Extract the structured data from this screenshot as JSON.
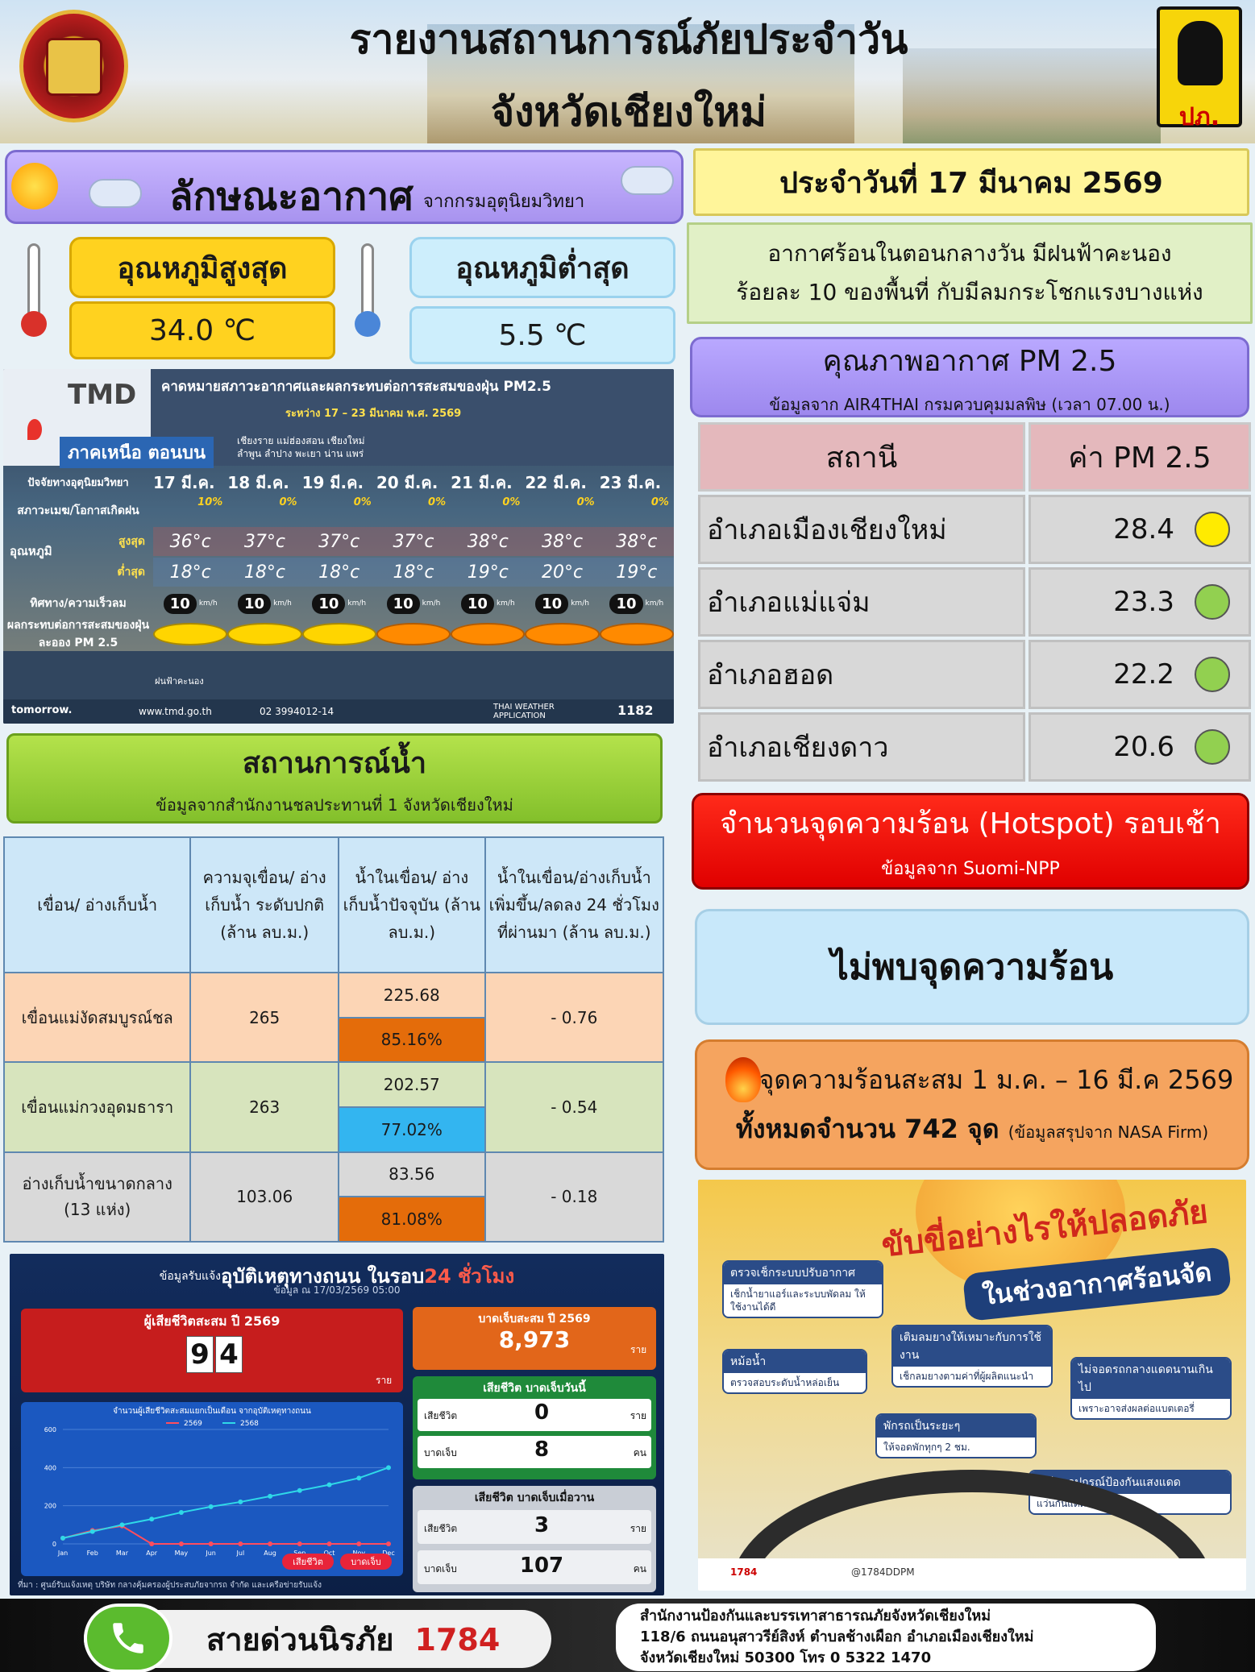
{
  "header": {
    "title_line1": "รายงานสถานการณ์ภัยประจำวัน",
    "title_line2": "จังหวัดเชียงใหม่",
    "logo_right_text": "ปภ."
  },
  "weather": {
    "title": "ลักษณะอากาศ",
    "source": "จากกรมอุตุนิยมวิทยา",
    "max_label": "อุณหภูมิสูงสุด",
    "max_value": "34.0 ℃",
    "min_label": "อุณหภูมิต่ำสุด",
    "min_value": "5.5 ℃"
  },
  "date": {
    "text": "ประจำวันที่ 17 มีนาคม 2569"
  },
  "forecast": {
    "line1": "อากาศร้อนในตอนกลางวัน  มีฝนฟ้าคะนอง",
    "line2": "ร้อยละ 10 ของพื้นที่ กับมีลมกระโชกแรงบางแห่ง"
  },
  "tmd": {
    "brand": "TMD",
    "heading": "คาดหมายสภาวะอากาศและผลกระทบต่อการสะสมของฝุ่น PM2.5",
    "period": "ระหว่าง 17 – 23 มีนาคม พ.ศ. 2569",
    "region": "ภาคเหนือ ตอนบน",
    "provinces_line1": "เชียงราย แม่ฮ่องสอน เชียงใหม่",
    "provinces_line2": "ลำพูน ลำปาง พะเยา น่าน แพร่",
    "factor_label": "ปัจจัยทางอุตุนิยมวิทยา",
    "days": [
      "17 มี.ค.",
      "18 มี.ค.",
      "19 มี.ค.",
      "20 มี.ค.",
      "21 มี.ค.",
      "22 มี.ค.",
      "23 มี.ค."
    ],
    "rain_label": "สภาวะเมฆ/โอกาสเกิดฝน",
    "rain_pct": [
      "10%",
      "0%",
      "0%",
      "0%",
      "0%",
      "0%",
      "0%"
    ],
    "temp_label": "อุณหภูมิ",
    "high_label": "สูงสุด",
    "low_label": "ต่ำสุด",
    "highs": [
      "36°c",
      "37°c",
      "37°c",
      "37°c",
      "38°c",
      "38°c",
      "38°c"
    ],
    "lows": [
      "18°c",
      "18°c",
      "18°c",
      "18°c",
      "19°c",
      "20°c",
      "19°c"
    ],
    "wind_label": "ทิศทาง/ความเร็วลม",
    "wind": [
      "10",
      "10",
      "10",
      "10",
      "10",
      "10",
      "10"
    ],
    "wind_unit": "km/h",
    "pm_label": "ผลกระทบต่อการสะสมของฝุ่นละออง PM 2.5",
    "pm_levels": [
      "yellow",
      "yellow",
      "yellow",
      "orange",
      "orange",
      "orange",
      "orange"
    ],
    "legend_storm": "ฝนฟ้าคะนอง",
    "website": "www.tmd.go.th",
    "phone": "02 3994012-14",
    "app": "THAI WEATHER APPLICATION",
    "hotline": "1182",
    "tomorrow": "tomorrow."
  },
  "pm25": {
    "title": "คุณภาพอากาศ PM 2.5",
    "source": "ข้อมูลจาก AIR4THAI กรมควบคุมมลพิษ (เวลา 07.00 น.)",
    "col_station": "สถานี",
    "col_value": "ค่า PM 2.5",
    "rows": [
      {
        "station": "อำเภอเมืองเชียงใหม่",
        "value": "28.4",
        "color": "#ffeb00"
      },
      {
        "station": "อำเภอแม่แจ่ม",
        "value": "23.3",
        "color": "#92d050"
      },
      {
        "station": "อำเภอฮอด",
        "value": "22.2",
        "color": "#92d050"
      },
      {
        "station": "อำเภอเชียงดาว",
        "value": "20.6",
        "color": "#92d050"
      }
    ]
  },
  "hotspot": {
    "title": "จำนวนจุดความร้อน (Hotspot) รอบเช้า",
    "source": "ข้อมูลจาก Suomi-NPP",
    "none": "ไม่พบจุดความร้อน",
    "accum_line1": "จุดความร้อนสะสม 1 ม.ค. – 16 มี.ค 2569",
    "accum_line2": "ทั้งหมดจำนวน 742 จุด",
    "accum_note": "(ข้อมูลสรุปจาก NASA Firm)"
  },
  "water": {
    "title": "สถานการณ์น้ำ",
    "source": "ข้อมูลจากสำนักงานชลประทานที่ 1 จังหวัดเชียงใหม่",
    "headers": [
      "เขื่อน/ อ่างเก็บน้ำ",
      "ความจุเขื่อน/ อ่างเก็บน้ำ ระดับปกติ (ล้าน ลบ.ม.)",
      "น้ำในเขื่อน/ อ่างเก็บน้ำปัจจุบัน (ล้าน ลบ.ม.)",
      "น้ำในเขื่อน/อ่างเก็บน้ำ เพิ่มขึ้น/ลดลง 24 ชั่วโมงที่ผ่านมา (ล้าน ลบ.ม.)"
    ],
    "rows": [
      {
        "name": "เขื่อนแม่งัดสมบูรณ์ชล",
        "capacity": "265",
        "current": "225.68",
        "pct": "85.16%",
        "change": "- 0.76",
        "bg": "#fcd5b5",
        "pctbg": "#e46c0a",
        "curbg": "#fcd5b5"
      },
      {
        "name": "เขื่อนแม่กวงอุดมธารา",
        "capacity": "263",
        "current": "202.57",
        "pct": "77.02%",
        "change": "- 0.54",
        "bg": "#d7e4bd",
        "pctbg": "#33b5f0",
        "curbg": "#d7e4bd"
      },
      {
        "name": "อ่างเก็บน้ำขนาดกลาง (13 แห่ง)",
        "capacity": "103.06",
        "current": "83.56",
        "pct": "81.08%",
        "change": "- 0.18",
        "bg": "#d9d9d9",
        "pctbg": "#e46c0a",
        "curbg": "#d9d9d9"
      }
    ]
  },
  "accident": {
    "title_prefix": "ข้อมูลรับแจ้ง ",
    "title_main": "อุบัติเหตุทางถนน ในรอบ ",
    "title_hl": "24 ชั่วโมง",
    "as_of": "ข้อมูล ณ 17/03/2569 05:00",
    "dead_title": "ผู้เสียชีวิตสะสม ปี 2569",
    "dead_digits": [
      "9",
      "4"
    ],
    "dead_unit": "ราย",
    "inj_title": "บาดเจ็บสะสม ปี 2569",
    "inj_value": "8,973",
    "inj_unit": "ราย",
    "today_title": "เสียชีวิต บาดเจ็บวันนี้",
    "today_dead_label": "เสียชีวิต",
    "today_dead": "0",
    "today_dead_unit": "ราย",
    "today_inj_label": "บาดเจ็บ",
    "today_inj": "8",
    "today_inj_unit": "คน",
    "yest_title": "เสียชีวิต บาดเจ็บเมื่อวาน",
    "yest_dead_label": "เสียชีวิต",
    "yest_dead": "3",
    "yest_dead_unit": "ราย",
    "yest_inj_label": "บาดเจ็บ",
    "yest_inj": "107",
    "yest_inj_unit": "คน",
    "chart_title": "จำนวนผู้เสียชีวิตสะสมแยกเป็นเดือน จากอุบัติเหตุทางถนน",
    "btn_dead": "เสียชีวิต",
    "btn_inj": "บาดเจ็บ",
    "footer_src": "ที่มา : ศูนย์รับแจ้งเหตุ บริษัท กลางคุ้มครองผู้ประสบภัยจากรถ จำกัด และเครือข่ายรับแจ้ง"
  },
  "chart_data": {
    "type": "line",
    "title": "จำนวนผู้เสียชีวิตสะสมแยกเป็นเดือน จากอุบัติเหตุทางถนน",
    "categories": [
      "Jan",
      "Feb",
      "Mar",
      "Apr",
      "May",
      "Jun",
      "Jul",
      "Aug",
      "Sep",
      "Oct",
      "Nov",
      "Dec"
    ],
    "ylim": [
      0,
      600
    ],
    "yticks": [
      0,
      200,
      400,
      600
    ],
    "series": [
      {
        "name": "2569",
        "color": "#ff4d5e",
        "values": [
          30,
          70,
          94,
          0,
          0,
          0,
          0,
          0,
          0,
          0,
          0,
          0
        ]
      },
      {
        "name": "2568",
        "color": "#2fd9e8",
        "values": [
          30,
          65,
          100,
          130,
          165,
          195,
          220,
          250,
          280,
          310,
          345,
          400
        ]
      }
    ]
  },
  "poster": {
    "head": "ขับขี่อย่างไรให้ปลอดภัย",
    "head2": "ในช่วงอากาศร้อนจัด",
    "cards": [
      {
        "t": "ตรวจเช็กระบบปรับอากาศ",
        "b": "เช็กน้ำยาแอร์และระบบพัดลม ให้ใช้งานได้ดี"
      },
      {
        "t": "เติมลมยางให้เหมาะกับการใช้งาน",
        "b": "เช็กลมยางตามค่าที่ผู้ผลิตแนะนำ"
      },
      {
        "t": "หม้อน้ำ",
        "b": "ตรวจสอบระดับน้ำหล่อเย็น"
      },
      {
        "t": "ไม่จอดรถกลางแดดนานเกินไป",
        "b": "เพราะอาจส่งผลต่อแบตเตอรี่"
      },
      {
        "t": "พักรถเป็นระยะๆ",
        "b": "ให้จอดพักทุกๆ 2 ชม."
      },
      {
        "t": "เตรียมอุปกรณ์ป้องกันแสงแดด",
        "b": "แว่นกันแดด ม่านบังแดด"
      }
    ],
    "foot_left": "1784",
    "foot_mid": "@1784DDPM"
  },
  "footer": {
    "hotline_label": "สายด่วนนิรภัย",
    "hotline_number": "1784",
    "office_line1": "สำนักงานป้องกันและบรรเทาสาธารณภัยจังหวัดเชียงใหม่",
    "office_line2": "118/6 ถนนอนุสาวรีย์สิงห์ ตำบลช้างเผือก อำเภอเมืองเชียงใหม่",
    "office_line3": "จังหวัดเชียงใหม่ 50300 โทร 0 5322 1470"
  }
}
